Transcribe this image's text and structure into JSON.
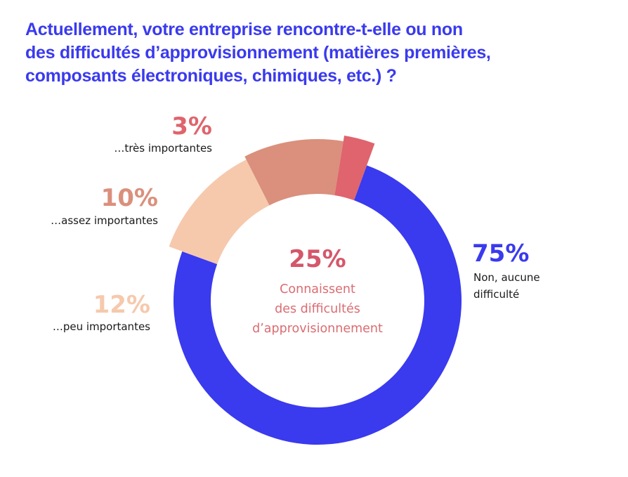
{
  "title_lines": [
    "Actuellement, votre entreprise rencontre-t-elle ou non",
    "des difficultés d’approvisionnement (matières premières,",
    "composants électroniques, chimiques, etc.) ?"
  ],
  "colors": {
    "title": "#3a3aee",
    "none": "#3a3aee",
    "tres": "#df646d",
    "assez": "#da907c",
    "peu": "#f6c9ad",
    "center_pct": "#d5576a",
    "center_text": "#da6d72"
  },
  "center": {
    "pct": "25%",
    "lines": [
      "Connaissent",
      "des difficultés",
      "d’approvisionnement"
    ]
  },
  "chart_data": {
    "type": "pie",
    "title": "Actuellement, votre entreprise rencontre-t-elle ou non des difficultés d’approvisionnement (matières premières, composants électroniques, chimiques, etc.) ?",
    "unit": "%",
    "slices": [
      {
        "key": "none",
        "pct_label": "75%",
        "label_lines": [
          "Non, aucune",
          "difficulté"
        ],
        "value": 75,
        "color": "#3a3aee"
      },
      {
        "key": "peu",
        "pct_label": "12%",
        "label_lines": [
          "…peu importantes"
        ],
        "value": 12,
        "color": "#f6c9ad"
      },
      {
        "key": "assez",
        "pct_label": "10%",
        "label_lines": [
          "…assez importantes"
        ],
        "value": 10,
        "color": "#da907c"
      },
      {
        "key": "tres",
        "pct_label": "3%",
        "label_lines": [
          "…très importantes"
        ],
        "value": 3,
        "color": "#df646d"
      }
    ]
  }
}
